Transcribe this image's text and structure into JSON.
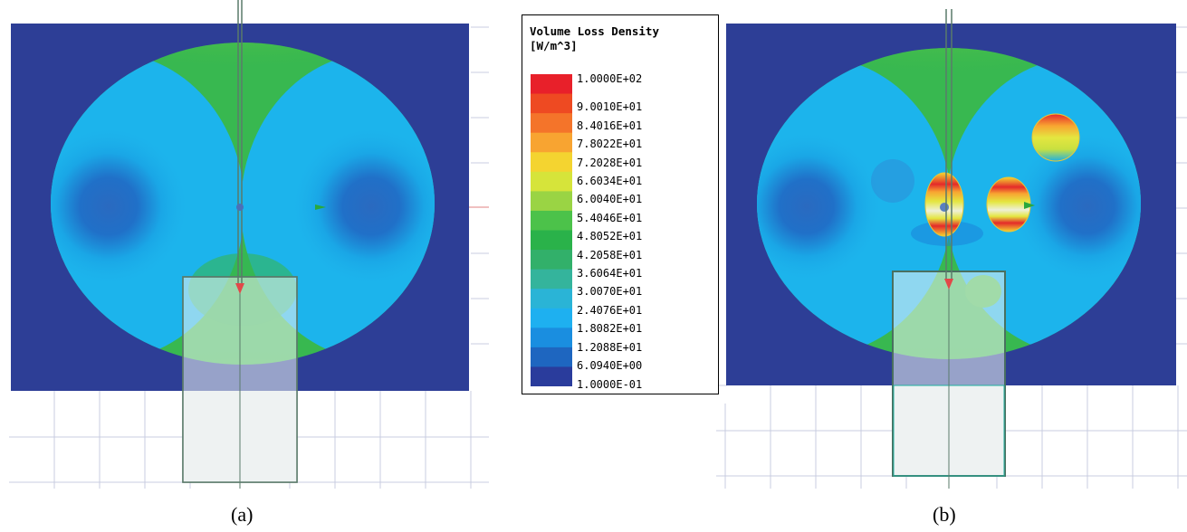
{
  "captions": {
    "a": "(a)",
    "b": "(b)"
  },
  "legend": {
    "title_line1": "Volume Loss Density",
    "title_line2": "[W/m^3]",
    "labels": [
      "1.0000E+02",
      "9.0010E+01",
      "8.4016E+01",
      "7.8022E+01",
      "7.2028E+01",
      "6.6034E+01",
      "6.0040E+01",
      "5.4046E+01",
      "4.8052E+01",
      "4.2058E+01",
      "3.6064E+01",
      "3.0070E+01",
      "2.4076E+01",
      "1.8082E+01",
      "1.2088E+01",
      "6.0940E+00",
      "1.0000E-01"
    ],
    "colors": [
      "#e8202a",
      "#ee4a22",
      "#f4742a",
      "#f8a431",
      "#f4d430",
      "#d6e43a",
      "#9ad444",
      "#4cc24a",
      "#2ab24a",
      "#32b06a",
      "#34b49c",
      "#2ab4d6",
      "#1eb0f0",
      "#1a8ee0",
      "#1e66c0",
      "#2a3c9c"
    ]
  },
  "field_colors": {
    "background_navy": "#2d3e96",
    "green": "#3aba4c",
    "cyan": "#1cb4ec",
    "blue": "#2070c4",
    "yellow": "#e2e43a",
    "red": "#e42a2a",
    "grid": "#c8cce0",
    "waveguide": "#5a7a6a"
  }
}
